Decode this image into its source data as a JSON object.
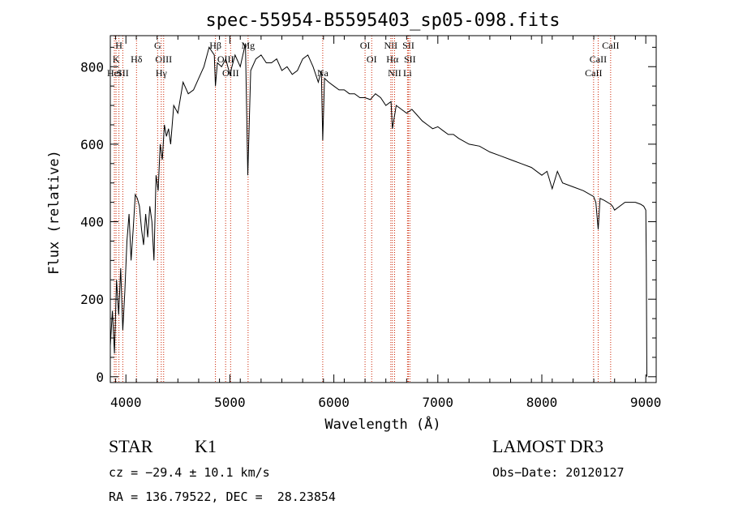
{
  "chart_data": {
    "type": "line",
    "title": "spec-55954-B5595403_sp05-098.fits",
    "xlabel": "Wavelength (Å)",
    "ylabel": "Flux (relative)",
    "xlim": [
      3850,
      9100
    ],
    "ylim": [
      -15,
      880
    ],
    "xticks": [
      4000,
      5000,
      6000,
      7000,
      8000,
      9000
    ],
    "yticks": [
      0,
      200,
      400,
      600,
      800
    ],
    "series": [
      {
        "name": "flux",
        "x": [
          3850,
          3870,
          3890,
          3910,
          3930,
          3950,
          3970,
          3990,
          4010,
          4030,
          4050,
          4070,
          4090,
          4110,
          4130,
          4150,
          4170,
          4190,
          4210,
          4230,
          4250,
          4270,
          4290,
          4310,
          4330,
          4350,
          4370,
          4390,
          4410,
          4430,
          4460,
          4500,
          4550,
          4600,
          4650,
          4700,
          4750,
          4800,
          4850,
          4861,
          4880,
          4920,
          4960,
          5000,
          5050,
          5100,
          5150,
          5172,
          5200,
          5250,
          5300,
          5350,
          5400,
          5450,
          5500,
          5550,
          5600,
          5650,
          5700,
          5750,
          5800,
          5850,
          5880,
          5893,
          5910,
          5950,
          6000,
          6050,
          6100,
          6150,
          6200,
          6250,
          6300,
          6350,
          6400,
          6450,
          6500,
          6550,
          6563,
          6600,
          6650,
          6700,
          6750,
          6800,
          6850,
          6900,
          6950,
          7000,
          7050,
          7100,
          7150,
          7200,
          7300,
          7400,
          7500,
          7600,
          7700,
          7800,
          7900,
          8000,
          8050,
          8100,
          8150,
          8200,
          8300,
          8400,
          8498,
          8520,
          8542,
          8560,
          8600,
          8662,
          8680,
          8700,
          8800,
          8900,
          8950,
          8980,
          9000,
          9005,
          9010
        ],
        "values": [
          80,
          170,
          60,
          250,
          160,
          280,
          120,
          220,
          350,
          420,
          300,
          380,
          470,
          460,
          440,
          380,
          340,
          420,
          360,
          440,
          400,
          300,
          520,
          480,
          600,
          560,
          650,
          620,
          640,
          600,
          700,
          680,
          760,
          730,
          740,
          770,
          800,
          850,
          830,
          750,
          810,
          800,
          820,
          780,
          830,
          800,
          860,
          520,
          790,
          820,
          830,
          810,
          810,
          820,
          790,
          800,
          780,
          790,
          820,
          830,
          800,
          760,
          790,
          610,
          770,
          760,
          750,
          740,
          740,
          730,
          730,
          720,
          720,
          715,
          730,
          720,
          700,
          710,
          640,
          700,
          690,
          680,
          690,
          675,
          660,
          650,
          640,
          645,
          635,
          625,
          625,
          615,
          600,
          595,
          580,
          570,
          560,
          550,
          540,
          520,
          530,
          485,
          530,
          500,
          490,
          480,
          465,
          450,
          380,
          460,
          455,
          445,
          440,
          430,
          450,
          450,
          445,
          440,
          430,
          300,
          0
        ]
      }
    ],
    "line_markers": [
      {
        "label": "H",
        "wl": 3933,
        "row": 0
      },
      {
        "label": "K",
        "wl": 3905,
        "row": 1
      },
      {
        "label": "HeI",
        "wl": 3889,
        "row": 2
      },
      {
        "label": "SII",
        "wl": 3970,
        "row": 2
      },
      {
        "label": "Hδ",
        "wl": 4102,
        "row": 1
      },
      {
        "label": "G",
        "wl": 4305,
        "row": 0
      },
      {
        "label": "OIII",
        "wl": 4363,
        "row": 1
      },
      {
        "label": "Hγ",
        "wl": 4340,
        "row": 2
      },
      {
        "label": "Hβ",
        "wl": 4861,
        "row": 0
      },
      {
        "label": "OIII",
        "wl": 4959,
        "row": 1
      },
      {
        "label": "OIII",
        "wl": 5007,
        "row": 2
      },
      {
        "label": "Mg",
        "wl": 5175,
        "row": 0
      },
      {
        "label": "Na",
        "wl": 5893,
        "row": 2
      },
      {
        "label": "OI",
        "wl": 6300,
        "row": 0
      },
      {
        "label": "OI",
        "wl": 6364,
        "row": 1
      },
      {
        "label": "NII",
        "wl": 6548,
        "row": 0
      },
      {
        "label": "Hα",
        "wl": 6563,
        "row": 1
      },
      {
        "label": "NII",
        "wl": 6584,
        "row": 2
      },
      {
        "label": "SII",
        "wl": 6717,
        "row": 0
      },
      {
        "label": "SII",
        "wl": 6731,
        "row": 1
      },
      {
        "label": "Li",
        "wl": 6708,
        "row": 2
      },
      {
        "label": "CaII",
        "wl": 8662,
        "row": 0
      },
      {
        "label": "CaII",
        "wl": 8542,
        "row": 1
      },
      {
        "label": "CaII",
        "wl": 8498,
        "row": 2
      }
    ]
  },
  "info": {
    "object_class": "STAR",
    "subclass": "K1",
    "survey": "LAMOST DR3",
    "cz": "cz = −29.4 ± 10.1 km/s",
    "obs_date": "Obs−Date: 20120127",
    "coords": "RA = 136.79522, DEC =  28.23854"
  },
  "colors": {
    "line": "#000000",
    "marker": "#cc2200"
  }
}
